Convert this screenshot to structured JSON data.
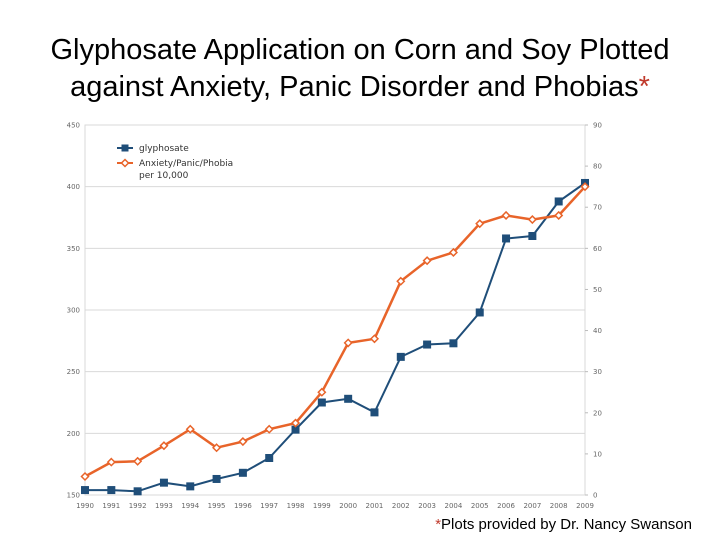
{
  "title": {
    "line1": "Glyphosate Application on Corn and Soy Plotted",
    "line2": "against Anxiety, Panic Disorder and Phobias",
    "asterisk": "*"
  },
  "footnote": {
    "asterisk": "*",
    "text": "Plots provided by Dr. Nancy Swanson"
  },
  "chart_data": {
    "type": "line",
    "title": "Glyphosate Application on Corn and Soy Plotted against Anxiety, Panic Disorder and Phobias",
    "xlabel": "",
    "ylabel_left": "",
    "ylabel_right": "",
    "categories": [
      "1990",
      "1991",
      "1992",
      "1993",
      "1994",
      "1995",
      "1996",
      "1997",
      "1998",
      "1999",
      "2000",
      "2001",
      "2002",
      "2003",
      "2004",
      "2005",
      "2006",
      "2007",
      "2008",
      "2009"
    ],
    "left_axis": {
      "ylim": [
        150,
        450
      ],
      "ticks": [
        "150",
        "200",
        "250",
        "300",
        "350",
        "400",
        "450"
      ],
      "tick_values": [
        150,
        200,
        250,
        300,
        350,
        400,
        450
      ]
    },
    "right_axis": {
      "ylim": [
        0,
        90
      ],
      "ticks": [
        "0",
        "10",
        "20",
        "30",
        "40",
        "50",
        "60",
        "70",
        "80",
        "90"
      ],
      "tick_values": [
        0,
        10,
        20,
        30,
        40,
        50,
        60,
        70,
        80,
        90
      ]
    },
    "series": [
      {
        "name": "glyphosate",
        "axis": "left",
        "color": "#1f4e79",
        "marker": "square",
        "values": [
          154,
          154,
          153,
          160,
          157,
          163,
          168,
          180,
          203,
          225,
          228,
          217,
          262,
          272,
          273,
          298,
          358,
          360,
          388,
          403
        ]
      },
      {
        "name": "Anxiety/Panic/Phobia per 10,000",
        "axis": "right",
        "color": "#e8642a",
        "marker": "diamond",
        "values": [
          4.5,
          8,
          8.2,
          12,
          16,
          11.5,
          13,
          16,
          17.5,
          25,
          37,
          38,
          52,
          57,
          59,
          66,
          68,
          67,
          68,
          75
        ]
      }
    ],
    "legend": {
      "position": "top-left",
      "entries": [
        "glyphosate",
        "Anxiety/Panic/Phobia",
        "per 10,000"
      ]
    },
    "grid": true
  }
}
